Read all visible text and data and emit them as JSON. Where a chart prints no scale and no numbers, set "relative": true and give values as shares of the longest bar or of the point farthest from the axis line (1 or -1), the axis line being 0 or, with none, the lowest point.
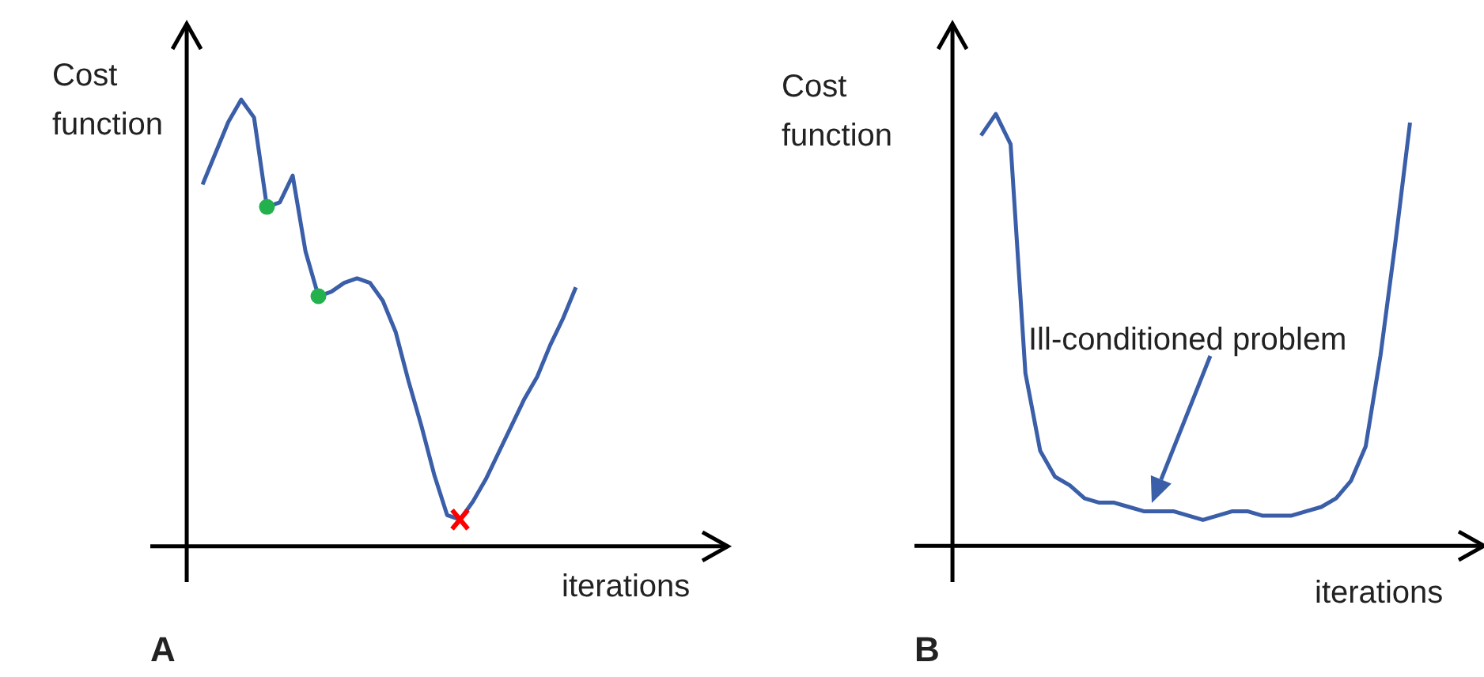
{
  "chart_data": [
    {
      "type": "line",
      "title": "A",
      "xlabel": "iterations",
      "ylabel": "Cost function",
      "relative": true,
      "categories": [
        null,
        null,
        null,
        null,
        null,
        null,
        null,
        null,
        null,
        null,
        null,
        null,
        null,
        null,
        null,
        null,
        null,
        null,
        null,
        null,
        null,
        null,
        null,
        null,
        null,
        null,
        null,
        null,
        null,
        null
      ],
      "series": [
        {
          "color": "#3a5ea8",
          "values": [
            0.81,
            0.88,
            0.95,
            1,
            0.96,
            0.76,
            0.77,
            0.83,
            0.66,
            0.56,
            0.57,
            0.59,
            0.6,
            0.59,
            0.55,
            0.48,
            0.37,
            0.27,
            0.16,
            0.07,
            0.06,
            0.1,
            0.15,
            0.21,
            0.27,
            0.33,
            0.38,
            0.45,
            0.51,
            0.58
          ]
        }
      ]
    },
    {
      "type": "line",
      "title": "B",
      "xlabel": "iterations",
      "ylabel": "Cost function",
      "relative": true,
      "annotations": [
        "Ill-conditioned problem"
      ],
      "categories": [
        null,
        null,
        null,
        null,
        null,
        null,
        null,
        null,
        null,
        null,
        null,
        null,
        null,
        null,
        null,
        null,
        null,
        null,
        null,
        null,
        null,
        null,
        null,
        null,
        null,
        null,
        null,
        null,
        null,
        null
      ],
      "series": [
        {
          "color": "#3a5ea8",
          "values": [
            0.95,
            1,
            0.93,
            0.4,
            0.22,
            0.16,
            0.14,
            0.11,
            0.1,
            0.1,
            0.09,
            0.08,
            0.08,
            0.08,
            0.07,
            0.06,
            0.07,
            0.08,
            0.08,
            0.07,
            0.07,
            0.07,
            0.08,
            0.09,
            0.11,
            0.15,
            0.23,
            0.44,
            0.7,
            0.98
          ]
        }
      ]
    }
  ]
}
